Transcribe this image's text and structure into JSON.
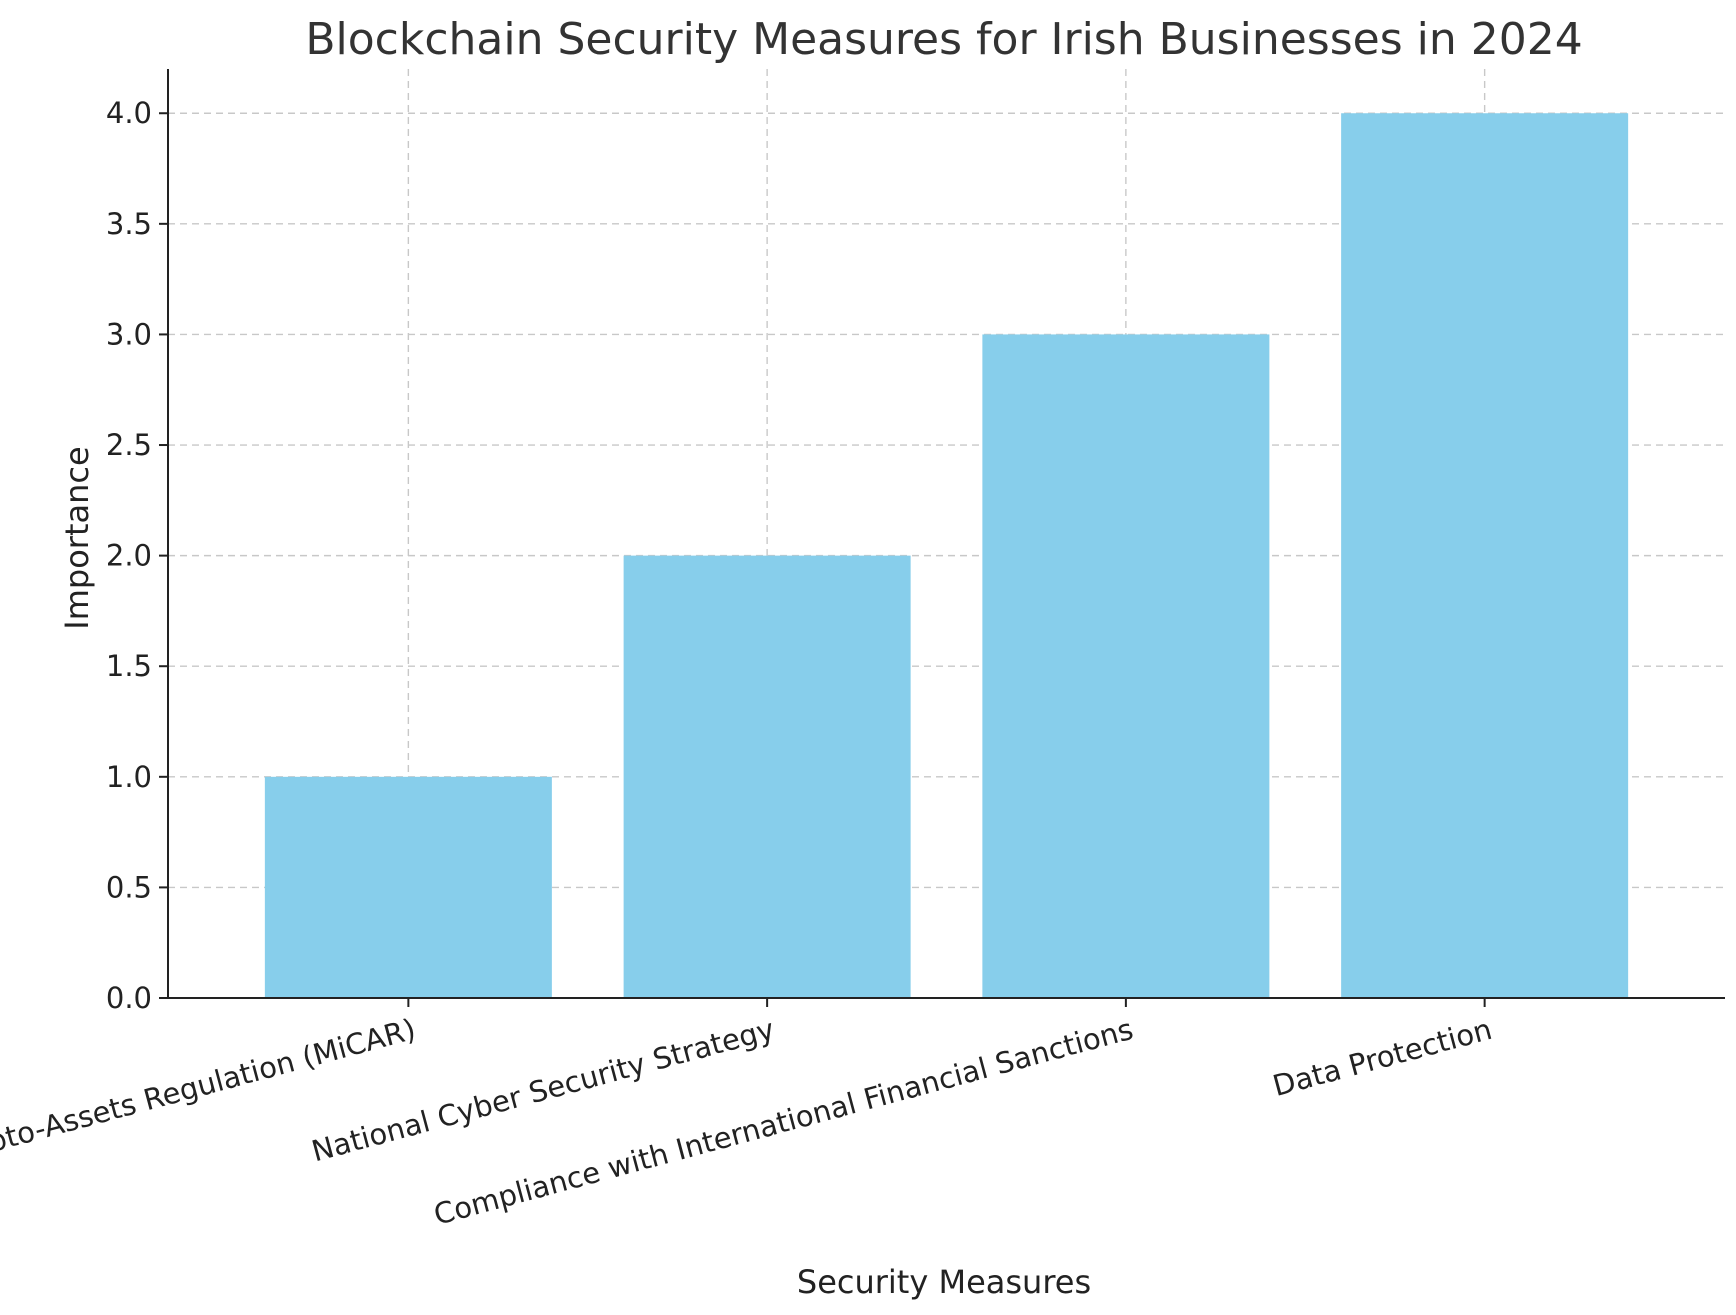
{
  "chart_data": {
    "type": "bar",
    "title": "Blockchain Security Measures for Irish Businesses in 2024",
    "xlabel": "Security Measures",
    "ylabel": "Importance",
    "categories": [
      "Markets in Crypto-Assets Regulation (MiCAR)",
      "National Cyber Security Strategy",
      "Compliance with International Financial Sanctions",
      "Data Protection"
    ],
    "values": [
      1,
      2,
      3,
      4
    ],
    "ylim": [
      0,
      4.2
    ],
    "yticks": [
      "0.0",
      "0.5",
      "1.0",
      "1.5",
      "2.0",
      "2.5",
      "3.0",
      "3.5",
      "4.0"
    ],
    "grid": true,
    "bar_color": "#87CEEB"
  }
}
